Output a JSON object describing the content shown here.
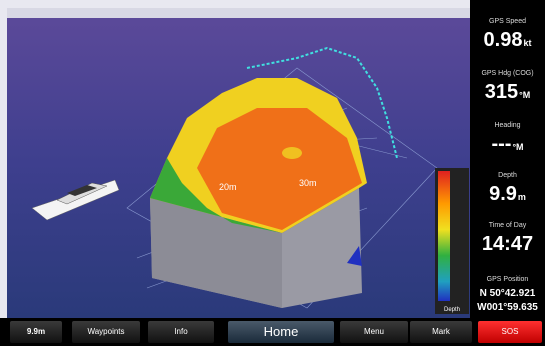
{
  "map": {
    "depth_labels": [
      "20m",
      "30m"
    ],
    "legend_label": "Depth"
  },
  "sidebar": {
    "fields": [
      {
        "label": "GPS Speed",
        "value": "0.98",
        "unit": "kt"
      },
      {
        "label": "GPS Hdg (COG)",
        "value": "315",
        "unit": "°M"
      },
      {
        "label": "Heading",
        "value": "---",
        "unit": "°M"
      },
      {
        "label": "Depth",
        "value": "9.9",
        "unit": "m"
      },
      {
        "label": "Time of Day",
        "value": "14:47"
      }
    ],
    "position": {
      "label": "GPS Position",
      "lat": "N  50°42.921",
      "lon": "W001°59.635"
    }
  },
  "bottom_bar": {
    "buttons": [
      "9.9m",
      "Waypoints",
      "Info",
      "Home",
      "Menu",
      "Mark",
      "SOS"
    ]
  }
}
